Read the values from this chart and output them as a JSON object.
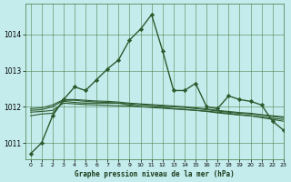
{
  "title": "Graphe pression niveau de la mer (hPa)",
  "background_color": "#c5eced",
  "grid_color": "#3d7a3d",
  "line_color": "#2d5a2d",
  "xlim": [
    -0.5,
    23
  ],
  "ylim": [
    1010.55,
    1014.85
  ],
  "yticks": [
    1011,
    1012,
    1013,
    1014
  ],
  "xticks": [
    0,
    1,
    2,
    3,
    4,
    5,
    6,
    7,
    8,
    9,
    10,
    11,
    12,
    13,
    14,
    15,
    16,
    17,
    18,
    19,
    20,
    21,
    22,
    23
  ],
  "series": [
    {
      "y": [
        1010.7,
        1011.0,
        1011.75,
        1012.2,
        1012.55,
        1012.45,
        1012.75,
        1013.05,
        1013.3,
        1013.85,
        1014.15,
        1014.55,
        1013.55,
        1012.45,
        1012.45,
        1012.65,
        1012.0,
        1011.95,
        1012.3,
        1012.2,
        1012.15,
        1012.05,
        1011.6,
        1011.35
      ],
      "marker": true,
      "lw": 1.0
    },
    {
      "y": [
        1011.75,
        1011.8,
        1011.82,
        1012.15,
        1012.12,
        1012.1,
        1012.1,
        1012.1,
        1012.1,
        1012.05,
        1012.0,
        1012.0,
        1011.98,
        1011.95,
        1011.93,
        1011.9,
        1011.88,
        1011.85,
        1011.82,
        1011.78,
        1011.75,
        1011.7,
        1011.65,
        1011.6
      ],
      "marker": false,
      "lw": 0.8
    },
    {
      "y": [
        1011.9,
        1011.92,
        1012.0,
        1012.18,
        1012.18,
        1012.15,
        1012.13,
        1012.12,
        1012.1,
        1012.08,
        1012.05,
        1012.04,
        1012.02,
        1012.0,
        1011.98,
        1011.95,
        1011.92,
        1011.88,
        1011.85,
        1011.82,
        1011.8,
        1011.77,
        1011.73,
        1011.7
      ],
      "marker": false,
      "lw": 0.8
    },
    {
      "y": [
        1011.95,
        1011.97,
        1012.05,
        1012.2,
        1012.2,
        1012.18,
        1012.16,
        1012.15,
        1012.13,
        1012.1,
        1012.08,
        1012.06,
        1012.04,
        1012.02,
        1012.0,
        1011.97,
        1011.94,
        1011.9,
        1011.87,
        1011.84,
        1011.82,
        1011.78,
        1011.75,
        1011.72
      ],
      "marker": false,
      "lw": 0.8
    },
    {
      "y": [
        1011.85,
        1011.87,
        1011.9,
        1012.1,
        1012.08,
        1012.06,
        1012.05,
        1012.04,
        1012.03,
        1012.02,
        1012.0,
        1011.98,
        1011.96,
        1011.94,
        1011.92,
        1011.9,
        1011.87,
        1011.83,
        1011.8,
        1011.77,
        1011.75,
        1011.72,
        1011.68,
        1011.65
      ],
      "marker": false,
      "lw": 0.8
    }
  ]
}
